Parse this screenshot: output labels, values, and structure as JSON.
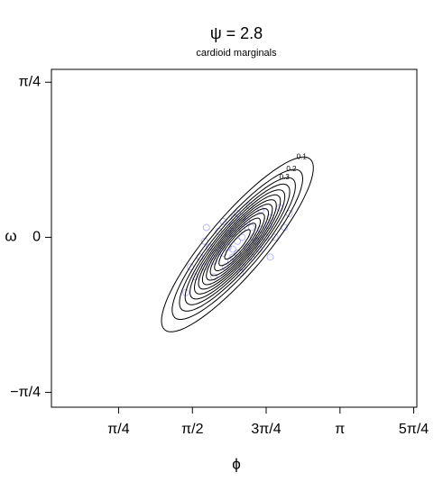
{
  "chart_data": {
    "type": "contour",
    "title": "ψ = 2.8",
    "subtitle": "cardioid marginals",
    "x_label": "ϕ",
    "y_label": "ω",
    "xlim": [
      0.07,
      3.96
    ],
    "ylim": [
      -0.86,
      0.85
    ],
    "xticks": [
      {
        "value": 0.785,
        "label": "π/4"
      },
      {
        "value": 1.571,
        "label": "π/2"
      },
      {
        "value": 2.356,
        "label": "3π/4"
      },
      {
        "value": 3.142,
        "label": "π"
      },
      {
        "value": 3.927,
        "label": "5π/4"
      }
    ],
    "yticks": [
      {
        "value": -0.785,
        "label": "−π/4"
      },
      0,
      {
        "value": 0.785,
        "label": "π/4"
      }
    ],
    "contour_color": "#000000",
    "point_color": "#3b3bd6",
    "center": [
      2.05,
      -0.036
    ],
    "contours": [
      {
        "level": 0.1,
        "label": true,
        "major": [
          0.775,
          0.432
        ],
        "minor": [
          0.23,
          -0.096
        ]
      },
      {
        "level": 0.2,
        "label": true,
        "major": [
          0.666,
          0.371
        ],
        "minor": [
          0.198,
          -0.082
        ]
      },
      {
        "level": 0.3,
        "label": true,
        "major": [
          0.592,
          0.33
        ],
        "minor": [
          0.176,
          -0.073
        ]
      },
      {
        "level": 0.4,
        "label": false,
        "major": [
          0.534,
          0.298
        ],
        "minor": [
          0.158,
          -0.066
        ]
      },
      {
        "level": 0.5,
        "label": false,
        "major": [
          0.484,
          0.27
        ],
        "minor": [
          0.144,
          -0.06
        ]
      },
      {
        "level": 0.6,
        "label": false,
        "major": [
          0.439,
          0.245
        ],
        "minor": [
          0.13,
          -0.054
        ]
      },
      {
        "level": 0.7,
        "label": false,
        "major": [
          0.397,
          0.221
        ],
        "minor": [
          0.118,
          -0.049
        ]
      },
      {
        "level": 0.8,
        "label": false,
        "major": [
          0.357,
          0.199
        ],
        "minor": [
          0.106,
          -0.044
        ]
      },
      {
        "level": 0.9,
        "label": false,
        "major": [
          0.317,
          0.177
        ],
        "minor": [
          0.094,
          -0.039
        ]
      },
      {
        "level": 1.0,
        "label": false,
        "major": [
          0.277,
          0.154
        ],
        "minor": [
          0.082,
          -0.034
        ]
      },
      {
        "level": 1.1,
        "label": false,
        "major": [
          0.234,
          0.13
        ],
        "minor": [
          0.069,
          -0.029
        ]
      },
      {
        "level": 1.2,
        "label": false,
        "major": [
          0.188,
          0.105
        ],
        "minor": [
          0.056,
          -0.023
        ]
      },
      {
        "level": 1.3,
        "label": false,
        "major": [
          0.13,
          0.073
        ],
        "minor": [
          0.039,
          -0.016
        ]
      }
    ],
    "points": {
      "x": [
        2.05,
        1.9,
        2.2,
        1.7,
        2.4,
        2.0,
        1.8,
        2.3,
        2.1,
        1.95,
        2.15,
        1.6,
        2.5,
        2.0,
        1.85,
        2.25,
        2.1,
        1.75,
        2.35,
        2.05,
        1.5,
        2.6,
        1.9,
        2.2,
        2.0,
        2.1,
        1.65,
        2.45,
        1.8,
        2.3,
        2.0,
        2.15,
        1.95,
        2.05,
        1.7,
        2.4,
        1.88,
        2.22,
        2.1,
        1.98,
        1.55,
        2.55,
        2.02,
        1.92,
        2.18,
        1.82,
        2.28,
        2.08,
        1.72,
        2.38
      ],
      "y": [
        -0.02,
        -0.08,
        0.05,
        -0.15,
        0.1,
        0.02,
        -0.12,
        0.04,
        0.0,
        -0.05,
        0.08,
        -0.2,
        0.15,
        -0.1,
        0.03,
        -0.02,
        -0.15,
        -0.05,
        0.0,
        0.12,
        -0.28,
        0.12,
        0.08,
        -0.1,
        0.06,
        0.1,
        -0.1,
        0.0,
        -0.2,
        0.14,
        -0.06,
        -0.05,
        0.02,
        -0.08,
        -0.02,
        -0.1,
        -0.04,
        0.0,
        0.04,
        -0.12,
        -0.15,
        0.05,
        0.1,
        -0.15,
        0.16,
        -0.08,
        -0.06,
        -0.18,
        0.05,
        0.06
      ]
    }
  }
}
